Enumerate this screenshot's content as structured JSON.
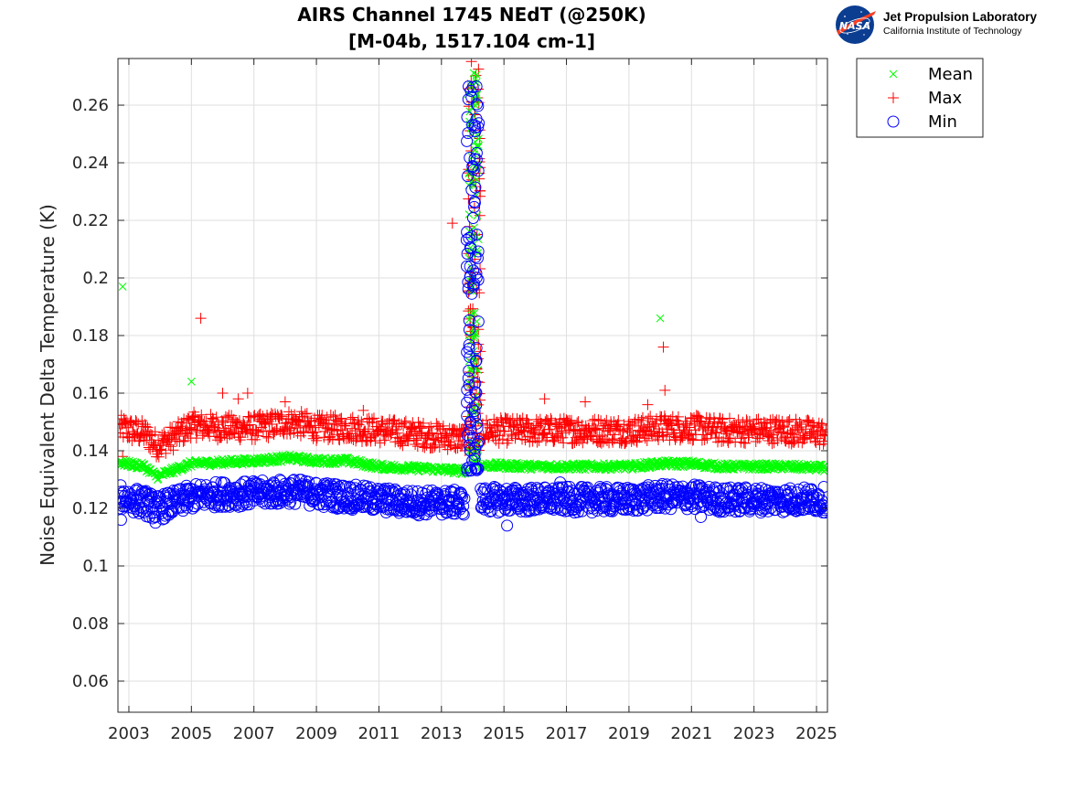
{
  "logo": {
    "badge": "NASA",
    "org": "Jet Propulsion Laboratory",
    "suborg": "California Institute of Technology"
  },
  "chart_data": {
    "type": "scatter",
    "title": "AIRS Channel 1745 NEdT (@250K)",
    "subtitle": "[M-04b, 1517.104 cm-1]",
    "xlabel": "",
    "ylabel": "Noise Equivalent Delta Temperature (K)",
    "xlim": [
      2002.65,
      2025.35
    ],
    "ylim": [
      0.0492,
      0.2762
    ],
    "grid": true,
    "legend_position": "outside-top-right",
    "x_ticks": [
      2003,
      2005,
      2007,
      2009,
      2011,
      2013,
      2015,
      2017,
      2019,
      2021,
      2023,
      2025
    ],
    "x_tick_labels": [
      "2003",
      "2005",
      "2007",
      "2009",
      "2011",
      "2013",
      "2015",
      "2017",
      "2019",
      "2021",
      "2023",
      "2025"
    ],
    "y_ticks": [
      0.06,
      0.08,
      0.1,
      0.12,
      0.14,
      0.16,
      0.18,
      0.2,
      0.22,
      0.24,
      0.26
    ],
    "y_tick_labels": [
      "0.06",
      "0.08",
      "0.1",
      "0.12",
      "0.14",
      "0.16",
      "0.18",
      "0.2",
      "0.22",
      "0.24",
      "0.26"
    ],
    "series": [
      {
        "name": "Mean",
        "marker": "x",
        "color": "#00ff00",
        "trend": [
          [
            2002.7,
            0.136
          ],
          [
            2003.5,
            0.1345
          ],
          [
            2003.9,
            0.131
          ],
          [
            2004.5,
            0.1335
          ],
          [
            2005.0,
            0.1355
          ],
          [
            2006.0,
            0.136
          ],
          [
            2007.0,
            0.1365
          ],
          [
            2008.2,
            0.1375
          ],
          [
            2009.0,
            0.1365
          ],
          [
            2010.0,
            0.1365
          ],
          [
            2011.0,
            0.1345
          ],
          [
            2012.0,
            0.134
          ],
          [
            2013.0,
            0.1335
          ],
          [
            2013.7,
            0.133
          ],
          [
            2014.3,
            0.135
          ],
          [
            2016.0,
            0.1345
          ],
          [
            2018.0,
            0.1345
          ],
          [
            2019.0,
            0.1345
          ],
          [
            2020.0,
            0.1355
          ],
          [
            2021.0,
            0.1355
          ],
          [
            2022.0,
            0.1345
          ],
          [
            2024.0,
            0.1345
          ],
          [
            2025.3,
            0.134
          ]
        ],
        "outliers": [
          [
            2002.8,
            0.197
          ],
          [
            2002.8,
            0.136
          ],
          [
            2005.0,
            0.164
          ],
          [
            2020.0,
            0.186
          ]
        ],
        "spike": {
          "x_range": [
            2013.85,
            2014.2
          ],
          "y_range": [
            0.135,
            0.272
          ]
        }
      },
      {
        "name": "Max",
        "marker": "+",
        "color": "#ff0000",
        "trend": [
          [
            2002.7,
            0.148
          ],
          [
            2003.5,
            0.146
          ],
          [
            2003.9,
            0.142
          ],
          [
            2004.5,
            0.145
          ],
          [
            2005.0,
            0.149
          ],
          [
            2006.0,
            0.148
          ],
          [
            2007.0,
            0.148
          ],
          [
            2008.2,
            0.15
          ],
          [
            2009.0,
            0.148
          ],
          [
            2010.0,
            0.148
          ],
          [
            2011.0,
            0.147
          ],
          [
            2012.0,
            0.146
          ],
          [
            2013.0,
            0.145
          ],
          [
            2013.7,
            0.144
          ],
          [
            2014.3,
            0.147
          ],
          [
            2016.0,
            0.147
          ],
          [
            2018.0,
            0.147
          ],
          [
            2019.0,
            0.147
          ],
          [
            2020.0,
            0.148
          ],
          [
            2021.0,
            0.148
          ],
          [
            2022.0,
            0.147
          ],
          [
            2024.0,
            0.147
          ],
          [
            2025.3,
            0.146
          ]
        ],
        "outliers": [
          [
            2005.3,
            0.186
          ],
          [
            2006.0,
            0.16
          ],
          [
            2006.5,
            0.158
          ],
          [
            2006.8,
            0.16
          ],
          [
            2008.0,
            0.157
          ],
          [
            2010.5,
            0.154
          ],
          [
            2013.35,
            0.219
          ],
          [
            2016.3,
            0.158
          ],
          [
            2017.6,
            0.157
          ],
          [
            2019.6,
            0.156
          ],
          [
            2020.1,
            0.176
          ],
          [
            2020.15,
            0.161
          ],
          [
            2002.8,
            0.138
          ]
        ],
        "spike": {
          "x_range": [
            2013.85,
            2014.25
          ],
          "y_range": [
            0.14,
            0.276
          ]
        }
      },
      {
        "name": "Min",
        "marker": "o",
        "color": "#0000ff",
        "trend": [
          [
            2002.7,
            0.124
          ],
          [
            2003.5,
            0.122
          ],
          [
            2003.9,
            0.12
          ],
          [
            2004.5,
            0.122
          ],
          [
            2005.0,
            0.124
          ],
          [
            2006.0,
            0.125
          ],
          [
            2007.0,
            0.125
          ],
          [
            2008.2,
            0.126
          ],
          [
            2009.0,
            0.125
          ],
          [
            2010.0,
            0.124
          ],
          [
            2011.0,
            0.123
          ],
          [
            2012.0,
            0.122
          ],
          [
            2013.0,
            0.122
          ],
          [
            2013.7,
            0.122
          ],
          [
            2014.3,
            0.123
          ],
          [
            2016.0,
            0.123
          ],
          [
            2018.0,
            0.123
          ],
          [
            2019.0,
            0.123
          ],
          [
            2020.0,
            0.124
          ],
          [
            2021.0,
            0.124
          ],
          [
            2022.0,
            0.123
          ],
          [
            2024.0,
            0.123
          ],
          [
            2025.3,
            0.123
          ]
        ],
        "outliers": [
          [
            2002.75,
            0.116
          ],
          [
            2003.85,
            0.115
          ],
          [
            2015.1,
            0.114
          ],
          [
            2021.3,
            0.117
          ],
          [
            2016.8,
            0.129
          ]
        ],
        "spike": {
          "x_range": [
            2013.8,
            2014.2
          ],
          "y_range": [
            0.133,
            0.268
          ]
        }
      }
    ]
  }
}
